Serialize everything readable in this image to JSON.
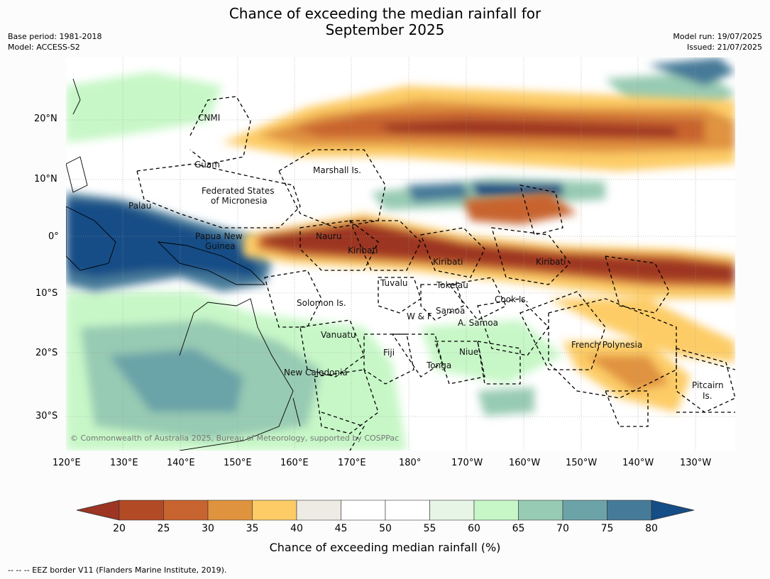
{
  "title": "Chance of exceeding the median rainfall for",
  "subtitle": "September 2025",
  "meta": {
    "base_period": "Base period: 1981-2018",
    "model": "Model: ACCESS-S2",
    "model_run": "Model run: 19/07/2025",
    "issued": "Issued: 21/07/2025"
  },
  "map": {
    "lat_labels": [
      "20°N",
      "10°N",
      "0°",
      "10°S",
      "20°S",
      "30°S"
    ],
    "lon_labels": [
      "120°E",
      "130°E",
      "140°E",
      "150°E",
      "160°E",
      "170°E",
      "180°",
      "170°W",
      "160°W",
      "150°W",
      "140°W",
      "130°W"
    ],
    "region_labels": {
      "cnmi": "CNMI",
      "guam": "Guam",
      "marshall": "Marshall Is.",
      "fsm1": "Federated States",
      "fsm2": "of Micronesia",
      "palau": "Palau",
      "png1": "Papua New",
      "png2": "Guinea",
      "nauru": "Nauru",
      "kiribati1": "Kiribati",
      "kiribati2": "Kiribati",
      "kiribati3": "Kiribati",
      "tuvalu": "Tuvalu",
      "tokelau": "Tokelau",
      "cook": "Cook Is.",
      "solomon": "Solomon Is.",
      "wf": "W & F",
      "samoa": "Samoa",
      "asamoa": "A. Samoa",
      "vanuatu": "Vanuatu",
      "fiji": "Fiji",
      "niue": "Niue",
      "tonga": "Tonga",
      "french_polynesia": "French Polynesia",
      "new_caledonia": "New Caledonia",
      "pitcairn1": "Pitcairn",
      "pitcairn2": "Is."
    },
    "copyright": "© Commonwealth of Australia 2025, Bureau of Meteorology, supported by COSPPac"
  },
  "colorbar": {
    "label": "Chance of exceeding median rainfall (%)",
    "ticks": [
      "20",
      "25",
      "30",
      "35",
      "40",
      "45",
      "50",
      "55",
      "60",
      "65",
      "70",
      "75",
      "80"
    ],
    "colors": [
      "#9c3523",
      "#b24a26",
      "#c8642f",
      "#e0933f",
      "#fdcc66",
      "#eeebe4",
      "#ffffff",
      "#ffffff",
      "#e6f5e6",
      "#c7f7c7",
      "#98cbb3",
      "#6ba3a8",
      "#467a99",
      "#154d86"
    ]
  },
  "footer": "--  --  -- EEZ border V11 (Flanders Marine Institute, 2019)."
}
